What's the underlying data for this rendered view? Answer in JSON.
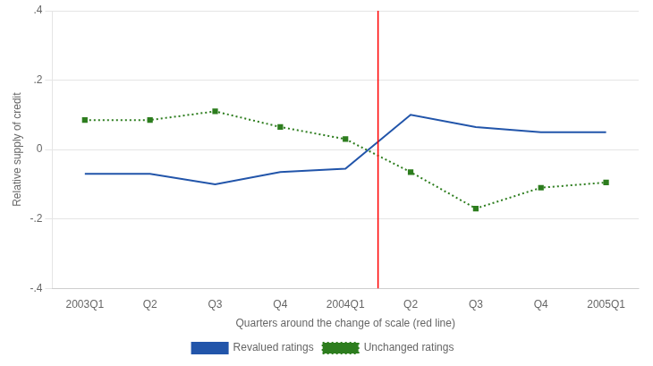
{
  "chart_data": {
    "type": "line",
    "xlabel": "Quarters around the change of scale (red line)",
    "ylabel": "Relative supply of credit",
    "categories": [
      "2003Q1",
      "Q2",
      "Q3",
      "Q4",
      "2004Q1",
      "Q2",
      "Q3",
      "Q4",
      "2005Q1"
    ],
    "series": [
      {
        "name": "Revalued ratings",
        "color": "#2255aa",
        "line_style": "solid",
        "marker": "none",
        "values": [
          -0.07,
          -0.07,
          -0.1,
          -0.065,
          -0.055,
          0.1,
          0.065,
          0.05,
          0.05
        ]
      },
      {
        "name": "Unchanged ratings",
        "color": "#2d7d1e",
        "line_style": "dotted",
        "marker": "square",
        "values": [
          0.085,
          0.085,
          0.11,
          0.065,
          0.03,
          -0.065,
          -0.17,
          -0.11,
          -0.095
        ]
      }
    ],
    "ylim": [
      -0.4,
      0.4
    ],
    "yticks": [
      {
        "value": -0.4,
        "label": "-.4"
      },
      {
        "value": -0.2,
        "label": "-.2"
      },
      0,
      {
        "value": 0.2,
        "label": ".2"
      },
      {
        "value": 0.4,
        "label": ".4"
      }
    ],
    "grid": "y",
    "legend": "bottom",
    "vlines": [
      {
        "x": 4.5,
        "color": "red"
      }
    ]
  }
}
